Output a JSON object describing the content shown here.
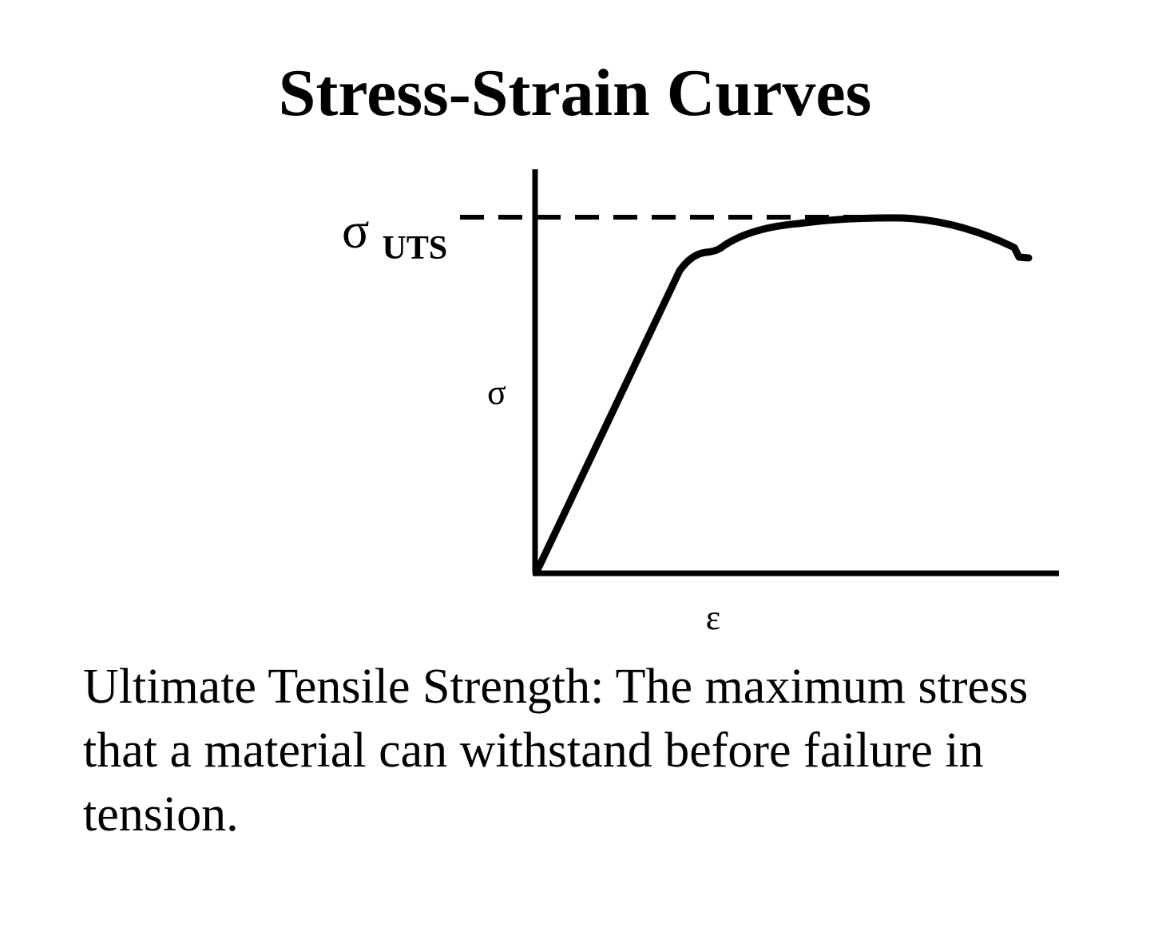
{
  "title": "Stress-Strain Curves",
  "labels": {
    "uts_symbol": "σ",
    "uts_subscript": "UTS",
    "y_axis": "σ",
    "x_axis": "ε"
  },
  "caption": "Ultimate Tensile Strength: The maximum stress that a material can withstand before failure in tension."
}
